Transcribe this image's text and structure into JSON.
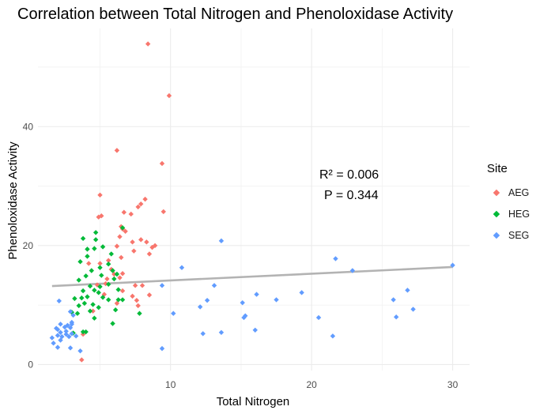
{
  "chart_data": {
    "type": "scatter",
    "title": "Correlation between Total Nitrogen and Phenoloxidase Activity",
    "xlabel": "Total Nitrogen",
    "ylabel": "Phenoloxidase Activity",
    "xlim": [
      0.6,
      31.2
    ],
    "ylim": [
      -1.0,
      56.5
    ],
    "x_ticks": [
      10,
      20,
      30
    ],
    "y_ticks": [
      0,
      20,
      40
    ],
    "grid": true,
    "legend_title": "Site",
    "legend_position": "right",
    "annotation": {
      "r2": "R² = 0.006",
      "p": "P = 0.344"
    },
    "trend_line": {
      "x": [
        1.6,
        30.0
      ],
      "y": [
        13.2,
        16.4
      ],
      "color": "#b3b3b3"
    },
    "series": [
      {
        "name": "AEG",
        "color": "#f8766d",
        "points": [
          [
            8.4,
            53.9
          ],
          [
            9.9,
            45.2
          ],
          [
            6.2,
            36.0
          ],
          [
            9.4,
            33.8
          ],
          [
            5.0,
            28.5
          ],
          [
            8.2,
            27.8
          ],
          [
            7.9,
            27.0
          ],
          [
            7.7,
            26.5
          ],
          [
            9.5,
            25.7
          ],
          [
            5.1,
            25.0
          ],
          [
            4.9,
            24.8
          ],
          [
            6.7,
            25.6
          ],
          [
            7.2,
            25.3
          ],
          [
            6.5,
            23.2
          ],
          [
            6.6,
            22.8
          ],
          [
            6.8,
            22.4
          ],
          [
            6.4,
            21.5
          ],
          [
            7.3,
            20.6
          ],
          [
            7.9,
            21.0
          ],
          [
            8.3,
            20.6
          ],
          [
            8.7,
            19.7
          ],
          [
            8.9,
            20.0
          ],
          [
            6.2,
            19.9
          ],
          [
            7.4,
            19.1
          ],
          [
            8.5,
            18.6
          ],
          [
            6.5,
            18.0
          ],
          [
            4.2,
            17.0
          ],
          [
            5.6,
            17.5
          ],
          [
            5.0,
            17.0
          ],
          [
            5.8,
            16.0
          ],
          [
            6.0,
            15.2
          ],
          [
            5.5,
            14.4
          ],
          [
            6.4,
            14.6
          ],
          [
            6.6,
            15.3
          ],
          [
            4.8,
            13.4
          ],
          [
            5.4,
            13.6
          ],
          [
            6.6,
            12.4
          ],
          [
            7.5,
            13.3
          ],
          [
            8.0,
            13.3
          ],
          [
            5.3,
            11.8
          ],
          [
            7.3,
            11.5
          ],
          [
            7.6,
            10.8
          ],
          [
            6.2,
            10.3
          ],
          [
            7.7,
            9.9
          ],
          [
            8.5,
            11.7
          ],
          [
            4.5,
            9.0
          ],
          [
            3.8,
            5.1
          ],
          [
            3.7,
            0.8
          ]
        ]
      },
      {
        "name": "HEG",
        "color": "#00ba38",
        "points": [
          [
            4.7,
            22.2
          ],
          [
            6.6,
            23.0
          ],
          [
            3.8,
            21.2
          ],
          [
            4.7,
            21.0
          ],
          [
            4.6,
            19.5
          ],
          [
            5.2,
            19.8
          ],
          [
            4.1,
            19.4
          ],
          [
            4.1,
            18.2
          ],
          [
            5.8,
            18.6
          ],
          [
            3.6,
            17.3
          ],
          [
            5.6,
            16.9
          ],
          [
            5.0,
            16.3
          ],
          [
            4.4,
            15.8
          ],
          [
            5.9,
            15.8
          ],
          [
            5.1,
            15.0
          ],
          [
            4.0,
            14.9
          ],
          [
            6.2,
            15.2
          ],
          [
            3.5,
            14.2
          ],
          [
            6.0,
            14.4
          ],
          [
            4.3,
            13.2
          ],
          [
            5.0,
            13.1
          ],
          [
            5.6,
            13.5
          ],
          [
            3.8,
            12.4
          ],
          [
            4.6,
            12.5
          ],
          [
            6.3,
            12.6
          ],
          [
            4.9,
            12.1
          ],
          [
            3.7,
            11.2
          ],
          [
            4.1,
            11.4
          ],
          [
            5.2,
            11.3
          ],
          [
            3.2,
            11.1
          ],
          [
            5.6,
            10.9
          ],
          [
            6.3,
            10.9
          ],
          [
            3.9,
            10.3
          ],
          [
            4.5,
            10.1
          ],
          [
            6.6,
            10.9
          ],
          [
            3.5,
            9.9
          ],
          [
            4.9,
            9.6
          ],
          [
            3.0,
            8.8
          ],
          [
            4.3,
            9.0
          ],
          [
            6.1,
            9.2
          ],
          [
            3.4,
            8.6
          ],
          [
            7.8,
            8.6
          ],
          [
            4.6,
            7.8
          ],
          [
            5.9,
            6.9
          ],
          [
            3.8,
            5.5
          ],
          [
            4.0,
            5.5
          ],
          [
            3.1,
            5.3
          ]
        ]
      },
      {
        "name": "SEG",
        "color": "#619cff",
        "points": [
          [
            30.0,
            16.7
          ],
          [
            13.6,
            20.8
          ],
          [
            21.7,
            17.8
          ],
          [
            22.9,
            15.8
          ],
          [
            10.8,
            16.3
          ],
          [
            9.4,
            13.3
          ],
          [
            13.1,
            13.3
          ],
          [
            12.6,
            10.8
          ],
          [
            16.1,
            11.8
          ],
          [
            17.5,
            10.9
          ],
          [
            19.3,
            12.1
          ],
          [
            15.1,
            10.4
          ],
          [
            26.8,
            12.5
          ],
          [
            25.8,
            10.9
          ],
          [
            12.1,
            9.7
          ],
          [
            27.2,
            9.3
          ],
          [
            10.2,
            8.6
          ],
          [
            15.3,
            8.2
          ],
          [
            15.2,
            7.9
          ],
          [
            20.5,
            7.9
          ],
          [
            26.0,
            8.0
          ],
          [
            16.0,
            5.8
          ],
          [
            13.6,
            5.4
          ],
          [
            12.3,
            5.2
          ],
          [
            21.5,
            4.8
          ],
          [
            9.4,
            2.7
          ],
          [
            2.1,
            10.7
          ],
          [
            2.9,
            8.9
          ],
          [
            3.1,
            8.3
          ],
          [
            3.0,
            7.1
          ],
          [
            2.7,
            6.6
          ],
          [
            3.0,
            6.8
          ],
          [
            2.2,
            6.8
          ],
          [
            2.5,
            6.3
          ],
          [
            2.9,
            6.2
          ],
          [
            1.9,
            6.1
          ],
          [
            2.0,
            5.9
          ],
          [
            2.6,
            5.6
          ],
          [
            2.2,
            5.4
          ],
          [
            2.6,
            5.1
          ],
          [
            3.0,
            5.2
          ],
          [
            3.3,
            4.8
          ],
          [
            2.8,
            4.7
          ],
          [
            2.3,
            4.7
          ],
          [
            2.0,
            4.9
          ],
          [
            2.2,
            4.1
          ],
          [
            1.6,
            4.5
          ],
          [
            3.6,
            2.3
          ],
          [
            1.7,
            3.6
          ],
          [
            2.0,
            2.9
          ],
          [
            2.9,
            2.8
          ]
        ]
      }
    ]
  }
}
